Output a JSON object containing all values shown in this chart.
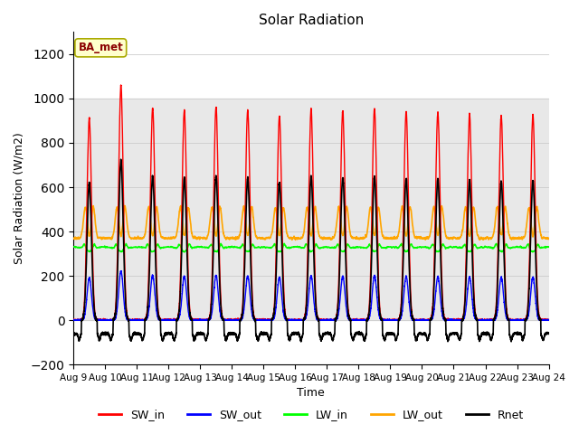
{
  "title": "Solar Radiation",
  "xlabel": "Time",
  "ylabel": "Solar Radiation (W/m2)",
  "ylim": [
    -200,
    1300
  ],
  "yticks": [
    -200,
    0,
    200,
    400,
    600,
    800,
    1000,
    1200
  ],
  "xlim": [
    0,
    15
  ],
  "xtick_labels": [
    "Aug 9",
    "Aug 10",
    "Aug 11",
    "Aug 12",
    "Aug 13",
    "Aug 14",
    "Aug 15",
    "Aug 16",
    "Aug 17",
    "Aug 18",
    "Aug 19",
    "Aug 20",
    "Aug 21",
    "Aug 22",
    "Aug 23",
    "Aug 24"
  ],
  "xtick_positions": [
    0,
    1,
    2,
    3,
    4,
    5,
    6,
    7,
    8,
    9,
    10,
    11,
    12,
    13,
    14,
    15
  ],
  "legend_entries": [
    "SW_in",
    "SW_out",
    "LW_in",
    "LW_out",
    "Rnet"
  ],
  "colors": {
    "SW_in": "#FF0000",
    "SW_out": "#0000FF",
    "LW_in": "#00FF00",
    "LW_out": "#FFA500",
    "Rnet": "#000000"
  },
  "annotation": "BA_met",
  "annotation_color": "#8B0000",
  "annotation_bg": "#FFFFCC",
  "background_gray": "#E8E8E8",
  "background_gray_ylim": [
    0,
    1000
  ],
  "n_days": 15,
  "dt": 0.002
}
